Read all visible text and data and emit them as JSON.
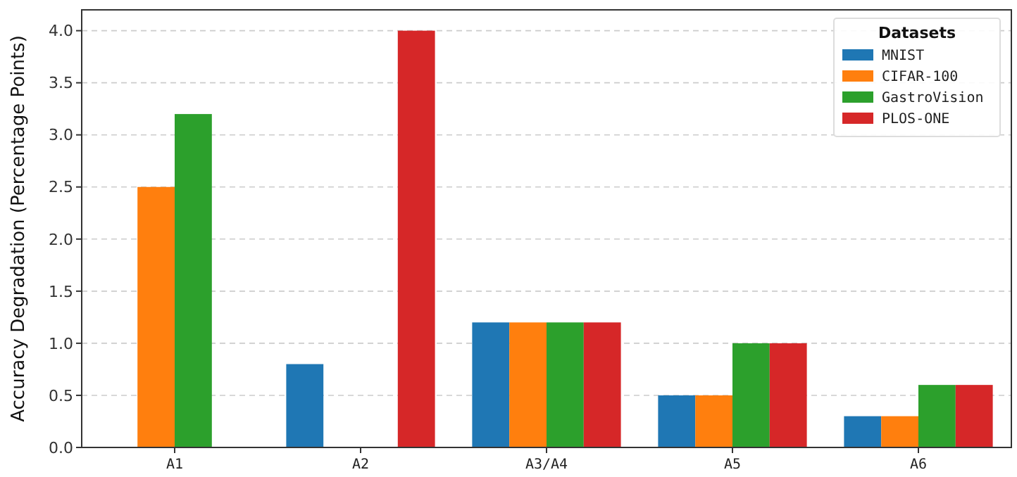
{
  "chart_data": {
    "type": "bar",
    "ylabel": "Accuracy Degradation (Percentage Points)",
    "legend_title": "Datasets",
    "categories": [
      "A1",
      "A2",
      "A3/A4",
      "A5",
      "A6"
    ],
    "series": [
      {
        "name": "MNIST",
        "color": "#1f77b4",
        "values": [
          null,
          0.8,
          1.2,
          0.5,
          0.3
        ]
      },
      {
        "name": "CIFAR-100",
        "color": "#ff7f0e",
        "values": [
          2.5,
          null,
          1.2,
          0.5,
          0.3
        ]
      },
      {
        "name": "GastroVision",
        "color": "#2ca02c",
        "values": [
          3.2,
          null,
          1.2,
          1.0,
          0.6
        ]
      },
      {
        "name": "PLOS-ONE",
        "color": "#d62728",
        "values": [
          null,
          4.0,
          1.2,
          1.0,
          0.6
        ]
      }
    ],
    "ylim": [
      0,
      4.2
    ],
    "yticks": [
      {
        "value": 0,
        "label": "0.0"
      },
      {
        "value": 0.5,
        "label": "0.5"
      },
      {
        "value": 1,
        "label": "1.0"
      },
      {
        "value": 1.5,
        "label": "1.5"
      },
      {
        "value": 2,
        "label": "2.0"
      },
      {
        "value": 2.5,
        "label": "2.5"
      },
      {
        "value": 3,
        "label": "3.0"
      },
      {
        "value": 3.5,
        "label": "3.5"
      },
      {
        "value": 4,
        "label": "4.0"
      }
    ],
    "grid": "y",
    "legend": "top right"
  }
}
